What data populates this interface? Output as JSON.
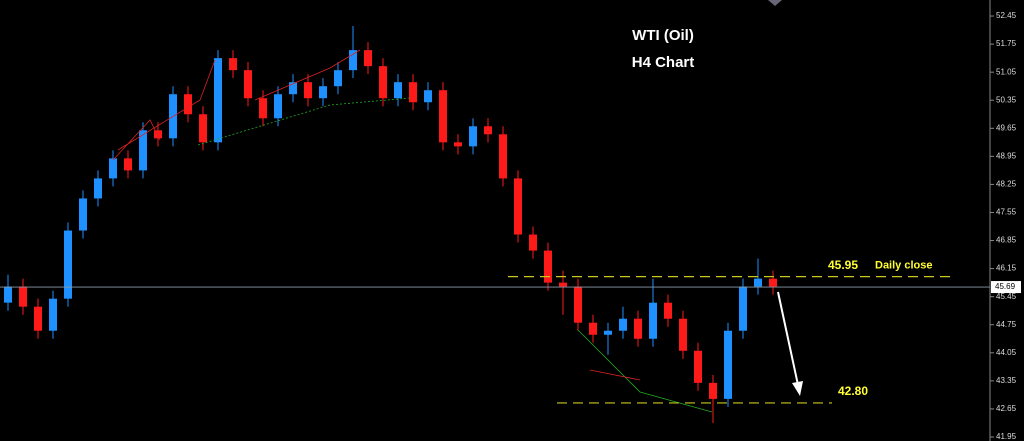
{
  "chart_data": {
    "type": "candlestick",
    "title": "WTI (Oil)",
    "subtitle": "H4 Chart",
    "up_color": "#1e90ff",
    "down_color": "#ff1a1a",
    "ylim": [
      41.85,
      52.85
    ],
    "yticks": [
      52.45,
      51.75,
      51.05,
      50.35,
      49.65,
      48.95,
      48.25,
      47.55,
      46.85,
      46.15,
      45.45,
      44.75,
      44.05,
      43.35,
      42.65,
      41.95
    ],
    "last_price": 45.69,
    "levels": [
      {
        "value": 45.95,
        "label": "45.95",
        "note": "Daily close"
      },
      {
        "value": 42.8,
        "label": "42.80"
      }
    ],
    "candles": [
      [
        45.3,
        46.0,
        45.1,
        45.7
      ],
      [
        45.7,
        45.9,
        45.0,
        45.2
      ],
      [
        45.2,
        45.4,
        44.4,
        44.6
      ],
      [
        44.6,
        45.6,
        44.4,
        45.4
      ],
      [
        45.4,
        47.3,
        45.2,
        47.1
      ],
      [
        47.1,
        48.1,
        46.9,
        47.9
      ],
      [
        47.9,
        48.6,
        47.7,
        48.4
      ],
      [
        48.4,
        49.1,
        48.2,
        48.9
      ],
      [
        48.9,
        49.1,
        48.4,
        48.6
      ],
      [
        48.6,
        49.8,
        48.4,
        49.6
      ],
      [
        49.6,
        49.8,
        49.2,
        49.4
      ],
      [
        49.4,
        50.7,
        49.2,
        50.5
      ],
      [
        50.5,
        50.7,
        49.8,
        50.0
      ],
      [
        50.0,
        50.2,
        49.1,
        49.3
      ],
      [
        49.3,
        51.6,
        49.1,
        51.4
      ],
      [
        51.4,
        51.6,
        50.9,
        51.1
      ],
      [
        51.1,
        51.3,
        50.2,
        50.4
      ],
      [
        50.4,
        50.6,
        49.7,
        49.9
      ],
      [
        49.9,
        50.7,
        49.7,
        50.5
      ],
      [
        50.5,
        51.0,
        50.3,
        50.8
      ],
      [
        50.8,
        51.0,
        50.2,
        50.4
      ],
      [
        50.4,
        50.9,
        50.2,
        50.7
      ],
      [
        50.7,
        51.3,
        50.5,
        51.1
      ],
      [
        51.1,
        52.2,
        50.9,
        51.6
      ],
      [
        51.6,
        51.8,
        51.0,
        51.2
      ],
      [
        51.2,
        51.4,
        50.2,
        50.4
      ],
      [
        50.4,
        51.0,
        50.2,
        50.8
      ],
      [
        50.8,
        51.0,
        50.1,
        50.3
      ],
      [
        50.3,
        50.8,
        50.1,
        50.6
      ],
      [
        50.6,
        50.8,
        49.1,
        49.3
      ],
      [
        49.3,
        49.5,
        49.0,
        49.2
      ],
      [
        49.2,
        49.9,
        49.0,
        49.7
      ],
      [
        49.7,
        49.9,
        49.3,
        49.5
      ],
      [
        49.5,
        49.7,
        48.2,
        48.4
      ],
      [
        48.4,
        48.6,
        46.8,
        47.0
      ],
      [
        47.0,
        47.2,
        46.4,
        46.6
      ],
      [
        46.6,
        46.8,
        45.6,
        45.8
      ],
      [
        45.8,
        46.1,
        45.0,
        45.7
      ],
      [
        45.7,
        45.9,
        44.6,
        44.8
      ],
      [
        44.8,
        45.0,
        44.3,
        44.5
      ],
      [
        44.5,
        44.8,
        44.0,
        44.6
      ],
      [
        44.6,
        45.2,
        44.4,
        44.9
      ],
      [
        44.9,
        45.1,
        44.2,
        44.4
      ],
      [
        44.4,
        45.9,
        44.2,
        45.3
      ],
      [
        45.3,
        45.5,
        44.7,
        44.9
      ],
      [
        44.9,
        45.1,
        43.9,
        44.1
      ],
      [
        44.1,
        44.3,
        43.1,
        43.3
      ],
      [
        43.3,
        43.5,
        42.3,
        42.9
      ],
      [
        42.9,
        44.8,
        42.7,
        44.6
      ],
      [
        44.6,
        45.9,
        44.4,
        45.7
      ],
      [
        45.7,
        46.4,
        45.5,
        45.9
      ],
      [
        45.9,
        46.1,
        45.5,
        45.7
      ]
    ]
  }
}
